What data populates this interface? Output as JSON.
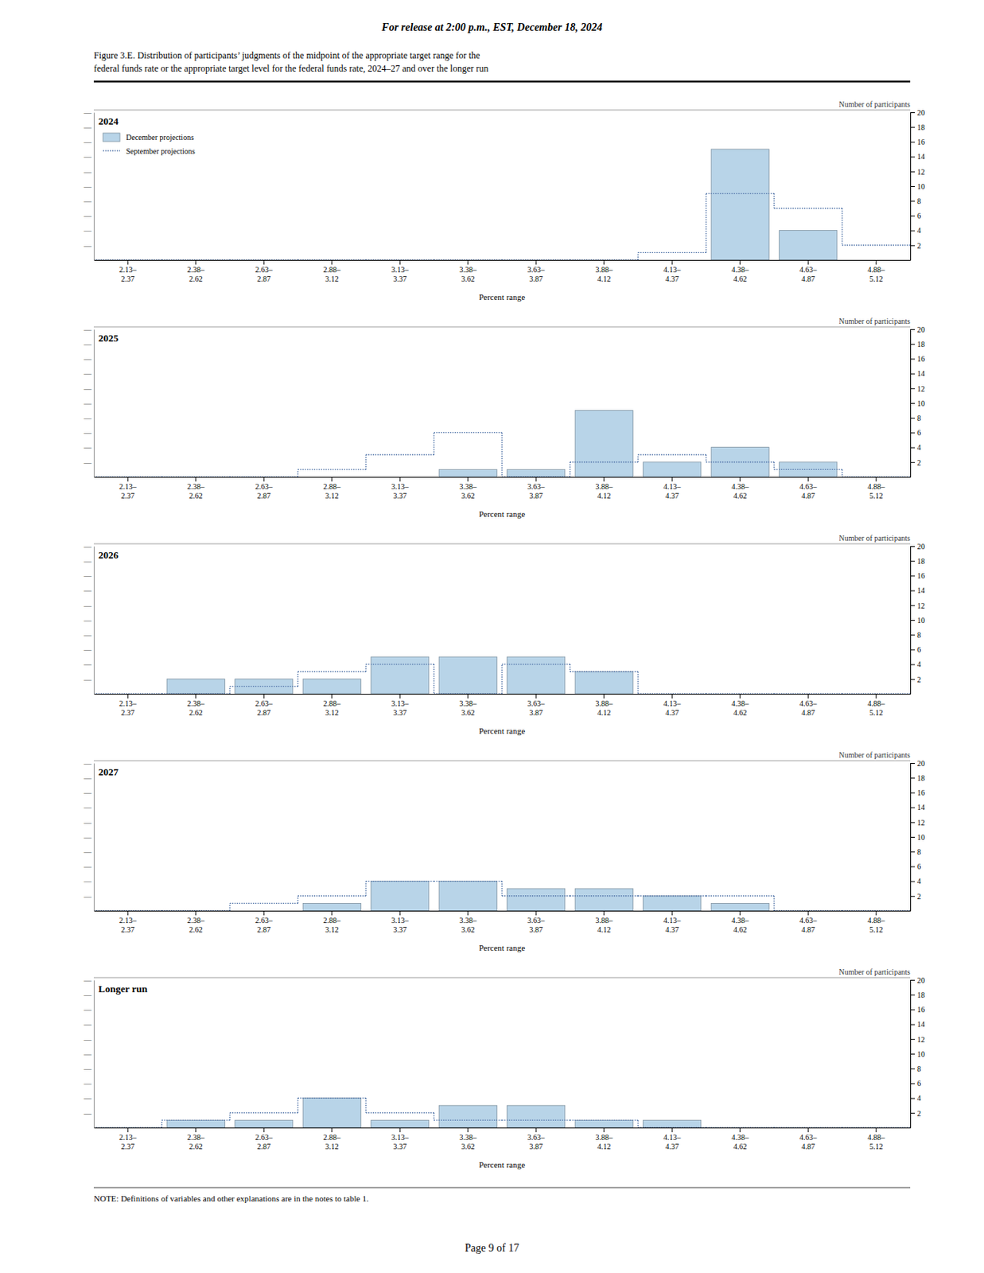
{
  "page": {
    "header": "For release at 2:00 p.m., EST, December 18, 2024",
    "caption": [
      "Figure 3.E. Distribution of participants’ judgments of the midpoint of the appropriate target range for the",
      "federal funds rate or the appropriate target level for the federal funds rate, 2024–27 and over the longer run"
    ],
    "note": "NOTE:  Definitions of variables and other explanations are in the notes to table 1.",
    "footer": "Page 9 of 17"
  },
  "chart_data": [
    {
      "type": "bar",
      "title": "2024",
      "xlabel": "Percent range",
      "ylabel": "Number of participants",
      "categories": [
        "2.13–\n2.37",
        "2.38–\n2.62",
        "2.63–\n2.87",
        "2.88–\n3.12",
        "3.13–\n3.37",
        "3.38–\n3.62",
        "3.63–\n3.87",
        "3.88–\n4.12",
        "4.13–\n4.37",
        "4.38–\n4.62",
        "4.63–\n4.87",
        "4.88–\n5.12"
      ],
      "series": [
        {
          "name": "December projections",
          "type": "bar",
          "color": "#b8d4e8",
          "values": [
            0,
            0,
            0,
            0,
            0,
            0,
            0,
            0,
            0,
            15,
            4,
            0
          ]
        },
        {
          "name": "September projections",
          "type": "line",
          "line_style": "dotted",
          "color": "#5577aa",
          "values": [
            0,
            0,
            0,
            0,
            0,
            0,
            0,
            0,
            1,
            9,
            7,
            2
          ]
        }
      ],
      "ylim": [
        0,
        20
      ],
      "yticks": [
        2,
        4,
        6,
        8,
        10,
        12,
        14,
        16,
        18,
        20
      ],
      "y2lim": [
        0,
        20
      ],
      "y2ticks": [
        {
          "value": 2,
          "label": "—"
        },
        {
          "value": 4,
          "label": "—"
        },
        {
          "value": 6,
          "label": "—"
        },
        {
          "value": 8,
          "label": "—"
        },
        {
          "value": 10,
          "label": "—"
        },
        {
          "value": 12,
          "label": "—"
        },
        {
          "value": 14,
          "label": "—"
        },
        {
          "value": 16,
          "label": "—"
        },
        {
          "value": 18,
          "label": "—"
        },
        {
          "value": 20,
          "label": "—"
        }
      ],
      "legend": "upper left"
    },
    {
      "type": "bar",
      "title": "2025",
      "xlabel": "Percent range",
      "ylabel": "Number of participants",
      "categories": [
        "2.13–\n2.37",
        "2.38–\n2.62",
        "2.63–\n2.87",
        "2.88–\n3.12",
        "3.13–\n3.37",
        "3.38–\n3.62",
        "3.63–\n3.87",
        "3.88–\n4.12",
        "4.13–\n4.37",
        "4.38–\n4.62",
        "4.63–\n4.87",
        "4.88–\n5.12"
      ],
      "series": [
        {
          "name": "December projections",
          "type": "bar",
          "color": "#b8d4e8",
          "values": [
            0,
            0,
            0,
            0,
            0,
            1,
            1,
            9,
            2,
            4,
            2,
            0
          ]
        },
        {
          "name": "September projections",
          "type": "line",
          "line_style": "dotted",
          "color": "#5577aa",
          "values": [
            0,
            0,
            0,
            1,
            3,
            6,
            0,
            2,
            3,
            2,
            1,
            0
          ]
        }
      ],
      "ylim": [
        0,
        20
      ],
      "yticks": [
        2,
        4,
        6,
        8,
        10,
        12,
        14,
        16,
        18,
        20
      ],
      "y2lim": [
        0,
        20
      ],
      "y2ticks": [
        {
          "value": 2,
          "label": "—"
        },
        {
          "value": 4,
          "label": "—"
        },
        {
          "value": 6,
          "label": "—"
        },
        {
          "value": 8,
          "label": "—"
        },
        {
          "value": 10,
          "label": "—"
        },
        {
          "value": 12,
          "label": "—"
        },
        {
          "value": 14,
          "label": "—"
        },
        {
          "value": 16,
          "label": "—"
        },
        {
          "value": 18,
          "label": "—"
        },
        {
          "value": 20,
          "label": "—"
        }
      ]
    },
    {
      "type": "bar",
      "title": "2026",
      "xlabel": "Percent range",
      "ylabel": "Number of participants",
      "categories": [
        "2.13–\n2.37",
        "2.38–\n2.62",
        "2.63–\n2.87",
        "2.88–\n3.12",
        "3.13–\n3.37",
        "3.38–\n3.62",
        "3.63–\n3.87",
        "3.88–\n4.12",
        "4.13–\n4.37",
        "4.38–\n4.62",
        "4.63–\n4.87",
        "4.88–\n5.12"
      ],
      "series": [
        {
          "name": "December projections",
          "type": "bar",
          "color": "#b8d4e8",
          "values": [
            0,
            2,
            2,
            2,
            5,
            5,
            5,
            3,
            0,
            0,
            0,
            0
          ]
        },
        {
          "name": "September projections",
          "type": "line",
          "line_style": "dotted",
          "color": "#5577aa",
          "values": [
            0,
            0,
            1,
            3,
            4,
            0,
            4,
            3,
            0,
            0,
            0,
            0
          ]
        }
      ],
      "ylim": [
        0,
        20
      ],
      "yticks": [
        2,
        4,
        6,
        8,
        10,
        12,
        14,
        16,
        18,
        20
      ],
      "y2lim": [
        0,
        20
      ],
      "y2ticks": [
        {
          "value": 2,
          "label": "—"
        },
        {
          "value": 4,
          "label": "—"
        },
        {
          "value": 6,
          "label": "—"
        },
        {
          "value": 8,
          "label": "—"
        },
        {
          "value": 10,
          "label": "—"
        },
        {
          "value": 12,
          "label": "—"
        },
        {
          "value": 14,
          "label": "—"
        },
        {
          "value": 16,
          "label": "—"
        },
        {
          "value": 18,
          "label": "—"
        },
        {
          "value": 20,
          "label": "—"
        }
      ]
    },
    {
      "type": "bar",
      "title": "2027",
      "xlabel": "Percent range",
      "ylabel": "Number of participants",
      "categories": [
        "2.13–\n2.37",
        "2.38–\n2.62",
        "2.63–\n2.87",
        "2.88–\n3.12",
        "3.13–\n3.37",
        "3.38–\n3.62",
        "3.63–\n3.87",
        "3.88–\n4.12",
        "4.13–\n4.37",
        "4.38–\n4.62",
        "4.63–\n4.87",
        "4.88–\n5.12"
      ],
      "series": [
        {
          "name": "December projections",
          "type": "bar",
          "color": "#b8d4e8",
          "values": [
            0,
            0,
            0,
            1,
            4,
            4,
            3,
            3,
            2,
            1,
            0,
            0
          ]
        },
        {
          "name": "September projections",
          "type": "line",
          "line_style": "dotted",
          "color": "#5577aa",
          "values": [
            0,
            0,
            1,
            2,
            4,
            4,
            2,
            2,
            2,
            2,
            0,
            0
          ]
        }
      ],
      "ylim": [
        0,
        20
      ],
      "yticks": [
        2,
        4,
        6,
        8,
        10,
        12,
        14,
        16,
        18,
        20
      ],
      "y2lim": [
        0,
        20
      ],
      "y2ticks": [
        {
          "value": 2,
          "label": "—"
        },
        {
          "value": 4,
          "label": "—"
        },
        {
          "value": 6,
          "label": "—"
        },
        {
          "value": 8,
          "label": "—"
        },
        {
          "value": 10,
          "label": "—"
        },
        {
          "value": 12,
          "label": "—"
        },
        {
          "value": 14,
          "label": "—"
        },
        {
          "value": 16,
          "label": "—"
        },
        {
          "value": 18,
          "label": "—"
        },
        {
          "value": 20,
          "label": "—"
        }
      ]
    },
    {
      "type": "bar",
      "title": "Longer run",
      "xlabel": "Percent range",
      "ylabel": "Number of participants",
      "categories": [
        "2.13–\n2.37",
        "2.38–\n2.62",
        "2.63–\n2.87",
        "2.88–\n3.12",
        "3.13–\n3.37",
        "3.38–\n3.62",
        "3.63–\n3.87",
        "3.88–\n4.12",
        "4.13–\n4.37",
        "4.38–\n4.62",
        "4.63–\n4.87",
        "4.88–\n5.12"
      ],
      "series": [
        {
          "name": "December projections",
          "type": "bar",
          "color": "#b8d4e8",
          "values": [
            0,
            1,
            1,
            4,
            1,
            3,
            3,
            1,
            1,
            0,
            0,
            0
          ]
        },
        {
          "name": "September projections",
          "type": "line",
          "line_style": "dotted",
          "color": "#5577aa",
          "values": [
            0,
            1,
            2,
            4,
            2,
            1,
            1,
            1,
            0,
            0,
            0,
            0
          ]
        }
      ],
      "ylim": [
        0,
        20
      ],
      "yticks": [
        2,
        4,
        6,
        8,
        10,
        12,
        14,
        16,
        18,
        20
      ],
      "y2lim": [
        0,
        20
      ],
      "y2ticks": [
        {
          "value": 2,
          "label": "—"
        },
        {
          "value": 4,
          "label": "—"
        },
        {
          "value": 6,
          "label": "—"
        },
        {
          "value": 8,
          "label": "—"
        },
        {
          "value": 10,
          "label": "—"
        },
        {
          "value": 12,
          "label": "—"
        },
        {
          "value": 14,
          "label": "—"
        },
        {
          "value": 16,
          "label": "—"
        },
        {
          "value": 18,
          "label": "—"
        },
        {
          "value": 20,
          "label": "—"
        }
      ]
    }
  ]
}
